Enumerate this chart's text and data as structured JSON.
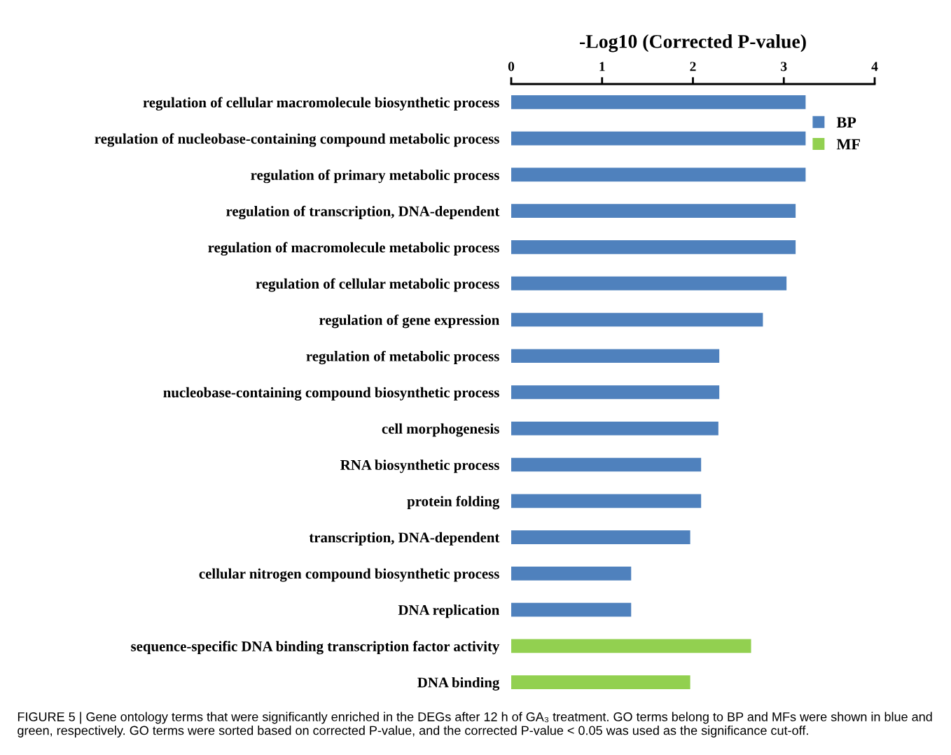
{
  "chart_data": {
    "type": "bar",
    "orientation": "horizontal",
    "xlabel": "-Log10 (Corrected P-value)",
    "categories": [
      "regulation of cellular macromolecule biosynthetic process",
      "regulation of nucleobase-containing compound metabolic process",
      "regulation of primary metabolic process",
      "regulation of transcription, DNA-dependent",
      "regulation of macromolecule metabolic process",
      "regulation of cellular metabolic process",
      "regulation of gene expression",
      "regulation of metabolic process",
      "nucleobase-containing compound biosynthetic process",
      "cell morphogenesis",
      "RNA biosynthetic process",
      "protein folding",
      "transcription, DNA-dependent",
      "cellular nitrogen compound biosynthetic process",
      "DNA replication",
      "sequence-specific DNA binding transcription factor activity",
      "DNA binding"
    ],
    "series": [
      {
        "name": "BP",
        "color": "#4f81bd",
        "values": [
          3.24,
          3.24,
          3.24,
          3.13,
          3.13,
          3.03,
          2.77,
          2.29,
          2.29,
          2.28,
          2.09,
          2.09,
          1.97,
          1.32,
          1.32,
          null,
          null
        ]
      },
      {
        "name": "MF",
        "color": "#92d050",
        "values": [
          null,
          null,
          null,
          null,
          null,
          null,
          null,
          null,
          null,
          null,
          null,
          null,
          null,
          null,
          null,
          2.64,
          1.97
        ]
      }
    ],
    "xlim": [
      0,
      4
    ],
    "xticks": [
      0,
      1,
      2,
      3,
      4
    ],
    "grid": false,
    "legend": "top right",
    "annotations": [
      "FIGURE 5 | Gene ontology terms that were significantly enriched in the DEGs after 12 h of GA₃ treatment. GO terms belong to BP and MFs were shown in blue and green, respectively. GO terms were sorted based on corrected P-value, and the corrected P-value < 0.05 was used as the significance cut-off."
    ]
  }
}
